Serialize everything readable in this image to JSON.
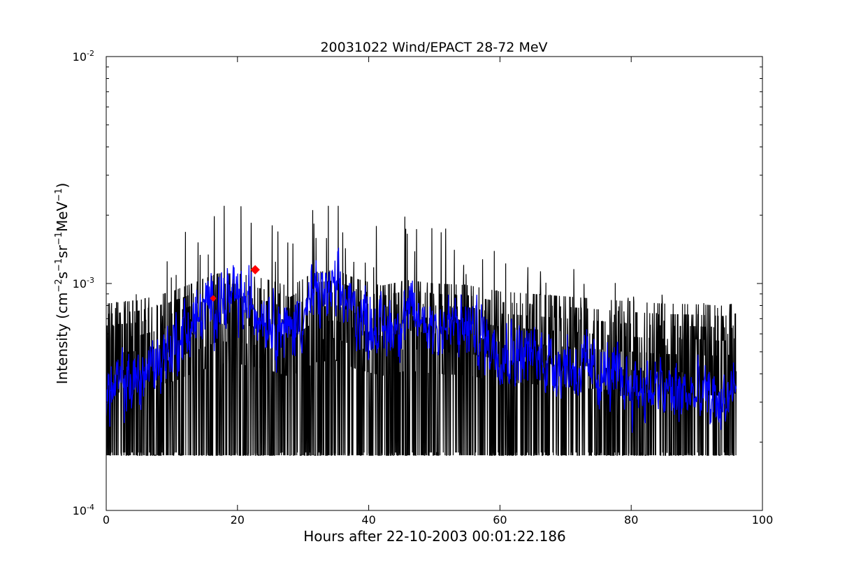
{
  "chart_data": {
    "type": "line",
    "title": "20031022 Wind/EPACT 28-72 MeV",
    "xlabel": "Hours after 22-10-2003 00:01:22.186",
    "ylabel": {
      "prefix": "Intensity (cm",
      "sup1": "−2",
      "mid1": "s",
      "sup2": "−1",
      "mid2": "sr",
      "sup3": "−1",
      "mid3": "MeV",
      "sup4": "−1",
      "suffix": ")"
    },
    "xlim": [
      0,
      100
    ],
    "ylim": [
      0.0001,
      0.01
    ],
    "yscale": "log",
    "grid": false,
    "x_ticks": [
      "0",
      "20",
      "40",
      "60",
      "80",
      "100"
    ],
    "x_tick_values": [
      0,
      20,
      40,
      60,
      80,
      100
    ],
    "y_ticks": [
      {
        "base": "10",
        "exp": "-4",
        "value": 0.0001
      },
      {
        "base": "10",
        "exp": "-3",
        "value": 0.001
      },
      {
        "base": "10",
        "exp": "-2",
        "value": 0.01
      }
    ],
    "series": [
      {
        "kind": "raw",
        "color": "#000000",
        "x_range": [
          0,
          96
        ],
        "levels": [
          0.000175,
          0.00018,
          0.00036,
          0.00045,
          0.00054,
          0.00063,
          0.00072,
          0.00081,
          0.0009
        ],
        "max_value": 0.0022
      },
      {
        "kind": "smoothed",
        "color": "#0000ff",
        "envelope": [
          {
            "x": 0,
            "y": 0.00033
          },
          {
            "x": 5,
            "y": 0.00038
          },
          {
            "x": 10,
            "y": 0.00052
          },
          {
            "x": 14,
            "y": 0.0007
          },
          {
            "x": 17,
            "y": 0.00085
          },
          {
            "x": 20,
            "y": 0.00085
          },
          {
            "x": 22,
            "y": 0.0008
          },
          {
            "x": 25,
            "y": 0.00072
          },
          {
            "x": 28,
            "y": 0.0006
          },
          {
            "x": 32,
            "y": 0.00088
          },
          {
            "x": 35,
            "y": 0.00092
          },
          {
            "x": 38,
            "y": 0.00075
          },
          {
            "x": 42,
            "y": 0.00062
          },
          {
            "x": 46,
            "y": 0.00072
          },
          {
            "x": 50,
            "y": 0.00066
          },
          {
            "x": 55,
            "y": 0.00063
          },
          {
            "x": 60,
            "y": 0.00052
          },
          {
            "x": 65,
            "y": 0.00048
          },
          {
            "x": 70,
            "y": 0.00044
          },
          {
            "x": 75,
            "y": 0.0004
          },
          {
            "x": 80,
            "y": 0.00036
          },
          {
            "x": 85,
            "y": 0.00033
          },
          {
            "x": 90,
            "y": 0.00032
          },
          {
            "x": 94,
            "y": 0.0003
          },
          {
            "x": 96,
            "y": 0.00034
          }
        ]
      }
    ],
    "markers": [
      {
        "x": 16.3,
        "y": 0.00086,
        "color": "#ff0000",
        "size": "small"
      },
      {
        "x": 22.7,
        "y": 0.00115,
        "color": "#ff0000",
        "size": "large"
      }
    ]
  }
}
